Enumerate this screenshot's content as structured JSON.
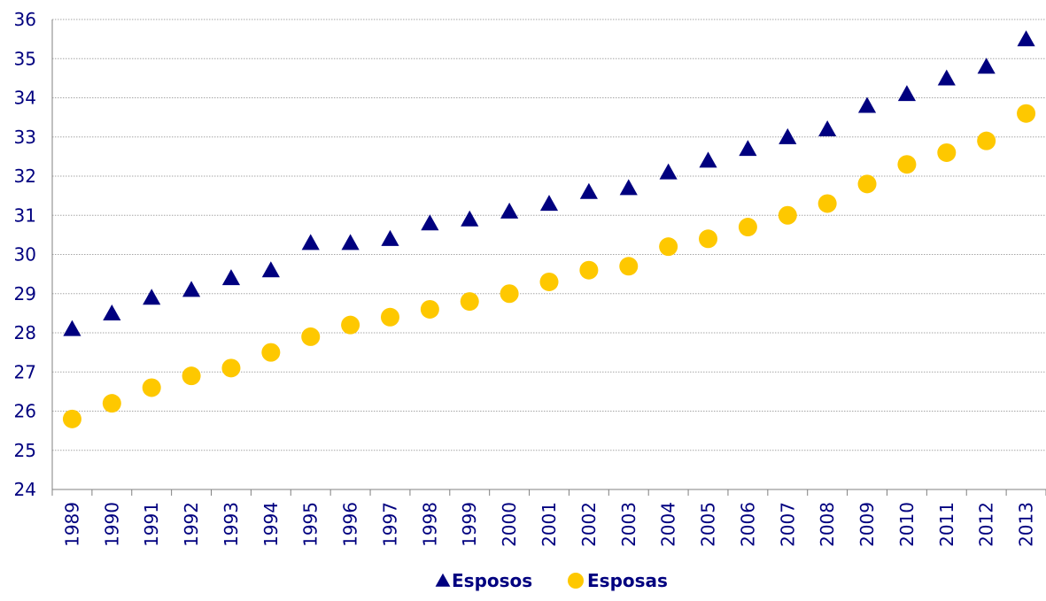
{
  "chart_data": {
    "type": "scatter",
    "title": "",
    "xlabel": "",
    "ylabel": "",
    "ylim": [
      24,
      36
    ],
    "yticks": [
      24,
      25,
      26,
      27,
      28,
      29,
      30,
      31,
      32,
      33,
      34,
      35,
      36
    ],
    "grid": "horizontal",
    "legend_position": "bottom",
    "categories": [
      "1989",
      "1990",
      "1991",
      "1992",
      "1993",
      "1994",
      "1995",
      "1996",
      "1997",
      "1998",
      "1999",
      "2000",
      "2001",
      "2002",
      "2003",
      "2004",
      "2005",
      "2006",
      "2007",
      "2008",
      "2009",
      "2010",
      "2011",
      "2012",
      "2013"
    ],
    "series": [
      {
        "name": "Esposos",
        "marker": "triangle",
        "color": "#00007f",
        "values": [
          28.1,
          28.5,
          28.9,
          29.1,
          29.4,
          29.6,
          30.3,
          30.3,
          30.4,
          30.8,
          30.9,
          31.1,
          31.3,
          31.6,
          31.7,
          32.1,
          32.4,
          32.7,
          33.0,
          33.2,
          33.8,
          34.1,
          34.5,
          34.8,
          35.5
        ]
      },
      {
        "name": "Esposas",
        "marker": "circle",
        "color": "#fec800",
        "values": [
          25.8,
          26.2,
          26.6,
          26.9,
          27.1,
          27.5,
          27.9,
          28.2,
          28.4,
          28.6,
          28.8,
          29.0,
          29.3,
          29.6,
          29.7,
          30.2,
          30.4,
          30.7,
          31.0,
          31.3,
          31.8,
          32.3,
          32.6,
          32.9,
          33.6
        ]
      }
    ]
  },
  "colors": {
    "text": "#00007f",
    "grid": "#a6a6a6",
    "axis": "#808080"
  }
}
